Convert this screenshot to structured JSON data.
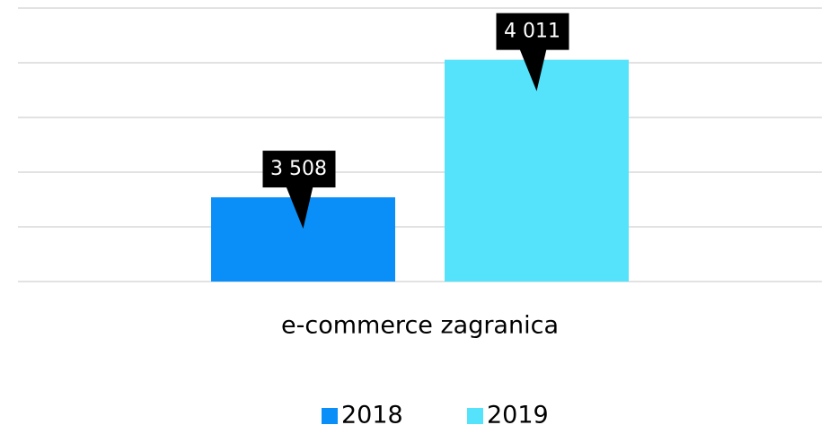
{
  "chart_data": {
    "type": "bar",
    "categories": [
      "e-commerce zagranica"
    ],
    "series": [
      {
        "name": "2018",
        "color": "#0a8ff8",
        "values": [
          3508
        ],
        "value_labels": [
          "3 508"
        ]
      },
      {
        "name": "2019",
        "color": "#55e3fb",
        "values": [
          4011
        ],
        "value_labels": [
          "4 011"
        ]
      }
    ],
    "ylim": [
      3200,
      4200
    ],
    "yticks": [
      3200,
      3400,
      3600,
      3800,
      4000,
      4200
    ],
    "grid": true,
    "legend": "bottom"
  }
}
